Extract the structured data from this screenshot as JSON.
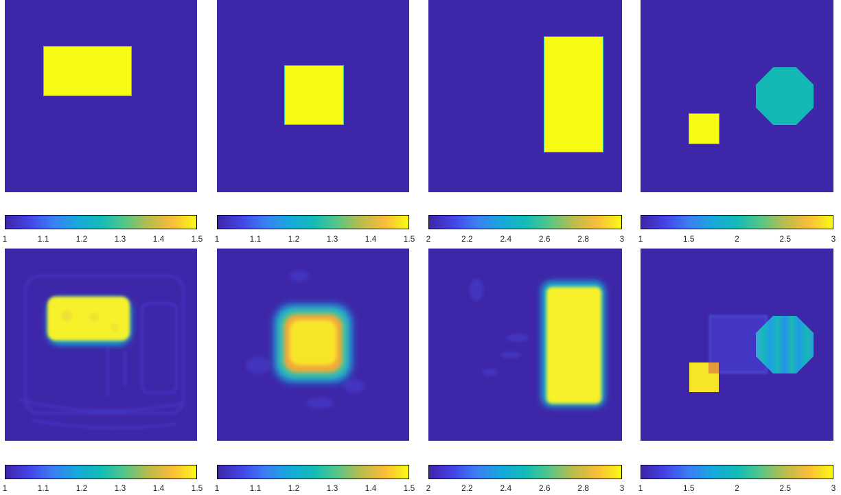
{
  "colors": {
    "background": "#3e26a8",
    "colormap": [
      "#3e26a8",
      "#4444e6",
      "#3b7ff4",
      "#17a8dc",
      "#12bcb7",
      "#55c688",
      "#bbbc4c",
      "#f9bd3a",
      "#f9fb15"
    ]
  },
  "chart_data": [
    {
      "type": "heatmap",
      "row": "true",
      "column": 1,
      "colorbar": {
        "min": 1,
        "max": 1.5,
        "ticks": [
          "1",
          "1.1",
          "1.2",
          "1.3",
          "1.4",
          "1.5"
        ]
      },
      "background_value": 1,
      "shapes": [
        {
          "shape": "rectangle",
          "value": 1.5
        }
      ]
    },
    {
      "type": "heatmap",
      "row": "true",
      "column": 2,
      "colorbar": {
        "min": 1,
        "max": 1.5,
        "ticks": [
          "1",
          "1.1",
          "1.2",
          "1.3",
          "1.4",
          "1.5"
        ]
      },
      "background_value": 1,
      "shapes": [
        {
          "shape": "square",
          "value": 1.5
        }
      ]
    },
    {
      "type": "heatmap",
      "row": "true",
      "column": 3,
      "colorbar": {
        "min": 2,
        "max": 3,
        "ticks": [
          "2",
          "2.2",
          "2.4",
          "2.6",
          "2.8",
          "3"
        ]
      },
      "background_value": 2,
      "shapes": [
        {
          "shape": "rectangle",
          "value": 3
        }
      ]
    },
    {
      "type": "heatmap",
      "row": "true",
      "column": 4,
      "colorbar": {
        "min": 1,
        "max": 3,
        "ticks": [
          "1",
          "1.5",
          "2",
          "2.5",
          "3"
        ]
      },
      "background_value": 1,
      "shapes": [
        {
          "shape": "square",
          "value": 3
        },
        {
          "shape": "circle",
          "value": 2
        }
      ]
    },
    {
      "type": "heatmap",
      "row": "reconstructed",
      "column": 1,
      "colorbar": {
        "min": 1,
        "max": 1.5,
        "ticks": [
          "1",
          "1.1",
          "1.2",
          "1.3",
          "1.4",
          "1.5"
        ]
      },
      "background_value": 1,
      "shapes": [
        {
          "shape": "rectangle",
          "value": 1.48
        }
      ]
    },
    {
      "type": "heatmap",
      "row": "reconstructed",
      "column": 2,
      "colorbar": {
        "min": 1,
        "max": 1.5,
        "ticks": [
          "1",
          "1.1",
          "1.2",
          "1.3",
          "1.4",
          "1.5"
        ]
      },
      "background_value": 1,
      "shapes": [
        {
          "shape": "square",
          "value": 1.45
        }
      ]
    },
    {
      "type": "heatmap",
      "row": "reconstructed",
      "column": 3,
      "colorbar": {
        "min": 2,
        "max": 3,
        "ticks": [
          "2",
          "2.2",
          "2.4",
          "2.6",
          "2.8",
          "3"
        ]
      },
      "background_value": 2,
      "shapes": [
        {
          "shape": "rectangle",
          "value": 2.97
        }
      ]
    },
    {
      "type": "heatmap",
      "row": "reconstructed",
      "column": 4,
      "colorbar": {
        "min": 1,
        "max": 3,
        "ticks": [
          "1",
          "1.5",
          "2",
          "2.5",
          "3"
        ]
      },
      "background_value": 1,
      "shapes": [
        {
          "shape": "square",
          "value": 2.9
        },
        {
          "shape": "circle",
          "value": 2
        }
      ]
    }
  ]
}
